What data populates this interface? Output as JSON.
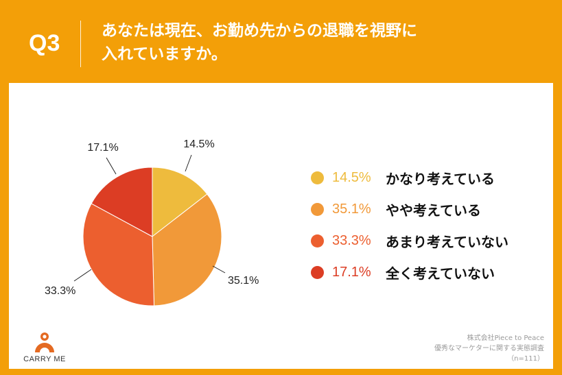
{
  "header": {
    "question_number": "Q3",
    "title_line1": "あなたは現在、お勤め先からの退職を視野に",
    "title_line2": "入れていますか。"
  },
  "chart_data": {
    "type": "pie",
    "title": "あなたは現在、お勤め先からの退職を視野に入れていますか。",
    "n": 111,
    "slices": [
      {
        "label": "かなり考えている",
        "value": 14.5,
        "display": "14.5%",
        "color": "#eebb3d"
      },
      {
        "label": "やや考えている",
        "value": 35.1,
        "display": "35.1%",
        "color": "#f19939"
      },
      {
        "label": "あまり考えていない",
        "value": 33.3,
        "display": "33.3%",
        "color": "#ec5f2f"
      },
      {
        "label": "全く考えていない",
        "value": 17.1,
        "display": "17.1%",
        "color": "#dc3d24"
      }
    ]
  },
  "logo": {
    "text": "CARRY ME"
  },
  "source": {
    "line1": "株式会社Piece to Peace",
    "line2": "優秀なマーケターに関する実態調査",
    "line3": "（n=111）"
  },
  "colors": {
    "frame": "#f39f08",
    "logo_mark": "#e46a22"
  }
}
